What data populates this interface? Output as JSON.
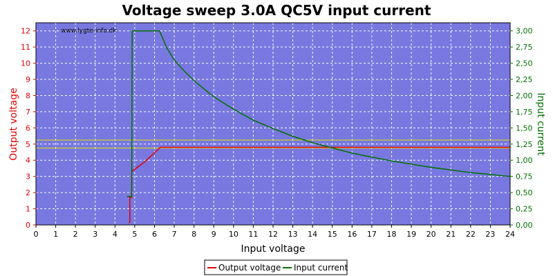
{
  "chart_data": {
    "type": "line",
    "title": "Voltage sweep 3.0A QC5V input current",
    "watermark": "www.lygte-info.dk",
    "xlabel": "Input voltage",
    "ylabel_left": "Output voltage",
    "ylabel_right": "Input current",
    "xlim": [
      0,
      24
    ],
    "ylim_left": [
      0,
      12.5
    ],
    "ylim_right": [
      0,
      3.125
    ],
    "x_ticks": [
      "0",
      "1",
      "2",
      "3",
      "4",
      "5",
      "6",
      "7",
      "8",
      "9",
      "10",
      "11",
      "12",
      "13",
      "14",
      "15",
      "16",
      "17",
      "18",
      "19",
      "20",
      "21",
      "22",
      "23",
      "24"
    ],
    "y_left_ticks": [
      "0",
      "1",
      "2",
      "3",
      "4",
      "5",
      "6",
      "7",
      "8",
      "9",
      "10",
      "11",
      "12"
    ],
    "y_right_ticks": [
      "0,00",
      "0,25",
      "0,50",
      "0,75",
      "1,00",
      "1,25",
      "1,50",
      "1,75",
      "2,00",
      "2,25",
      "2,50",
      "2,75",
      "3,00"
    ],
    "grid": true,
    "legend_placement": "bottom-center",
    "colors": {
      "plot_bg": "#7878e0",
      "output_voltage": "#e00000",
      "input_current": "#007000",
      "limit_lines": "#e0e000",
      "left_axis": "#e00000",
      "right_axis": "#007000"
    },
    "reference_lines_left_axis": [
      4.75,
      5.25
    ],
    "series": [
      {
        "name": "Output voltage",
        "axis": "left",
        "x": [
          4.7,
          4.75,
          4.75,
          4.85,
          4.85,
          5.5,
          6.3,
          6.5,
          24
        ],
        "y": [
          0.15,
          0.15,
          1.7,
          1.7,
          3.3,
          3.9,
          4.8,
          4.8,
          4.8
        ]
      },
      {
        "name": "Input current",
        "axis": "right",
        "x": [
          4.6,
          4.75,
          4.85,
          4.87,
          4.9,
          6.25,
          6.4,
          6.6,
          7.0,
          7.5,
          8.0,
          9.0,
          10.0,
          11.0,
          12.0,
          13.0,
          14.0,
          15.0,
          16.0,
          17.0,
          18.0,
          19.0,
          20.0,
          21.0,
          22.0,
          23.0,
          24.0
        ],
        "y": [
          0.44,
          0.44,
          0.44,
          3.0,
          3.0,
          3.0,
          2.9,
          2.75,
          2.55,
          2.38,
          2.23,
          1.98,
          1.79,
          1.62,
          1.49,
          1.37,
          1.27,
          1.19,
          1.11,
          1.05,
          0.99,
          0.94,
          0.89,
          0.85,
          0.81,
          0.78,
          0.75
        ]
      }
    ]
  }
}
